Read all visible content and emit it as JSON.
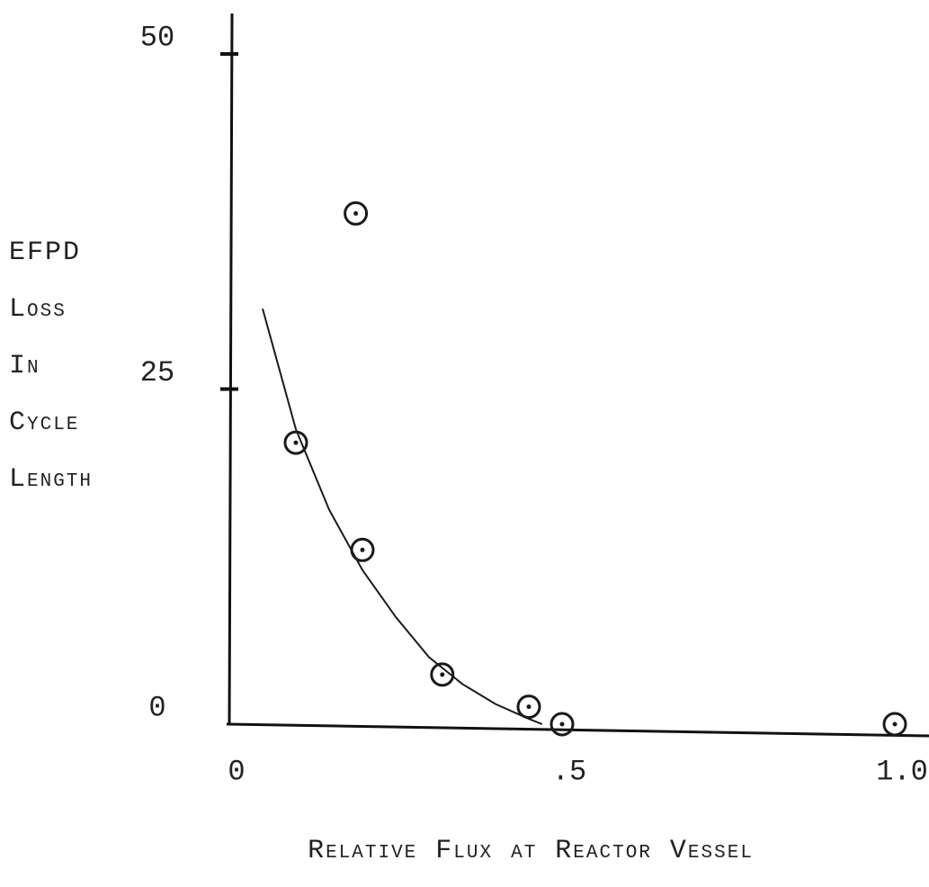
{
  "chart_data": {
    "type": "scatter",
    "x_label": "Relative Flux at Reactor Vessel",
    "y_label": [
      "EFPD",
      "Loss",
      "In",
      "Cycle",
      "Length"
    ],
    "series": [
      {
        "style": "markers",
        "color": "#1a1a1a",
        "x": [
          0.19,
          0.1,
          0.2,
          0.32,
          0.45,
          0.5,
          1.0
        ],
        "values": [
          38.1,
          21,
          13,
          3.7,
          1.3,
          0,
          0
        ]
      },
      {
        "style": "line",
        "color": "#1a1a1a",
        "x": [
          0.05,
          0.1,
          0.15,
          0.2,
          0.25,
          0.3,
          0.35,
          0.4,
          0.45,
          0.47
        ],
        "values": [
          31,
          22,
          16,
          11.5,
          8,
          5,
          3,
          1.5,
          0.4,
          0
        ]
      }
    ],
    "xlim": [
      0,
      1.0
    ],
    "ylim": [
      0,
      50
    ],
    "xticks": [
      0,
      {
        "value": 0.5,
        "label": ".5"
      },
      {
        "value": 1.0,
        "label": "1.0"
      }
    ],
    "yticks": [
      0,
      25,
      50
    ],
    "grid": false
  }
}
